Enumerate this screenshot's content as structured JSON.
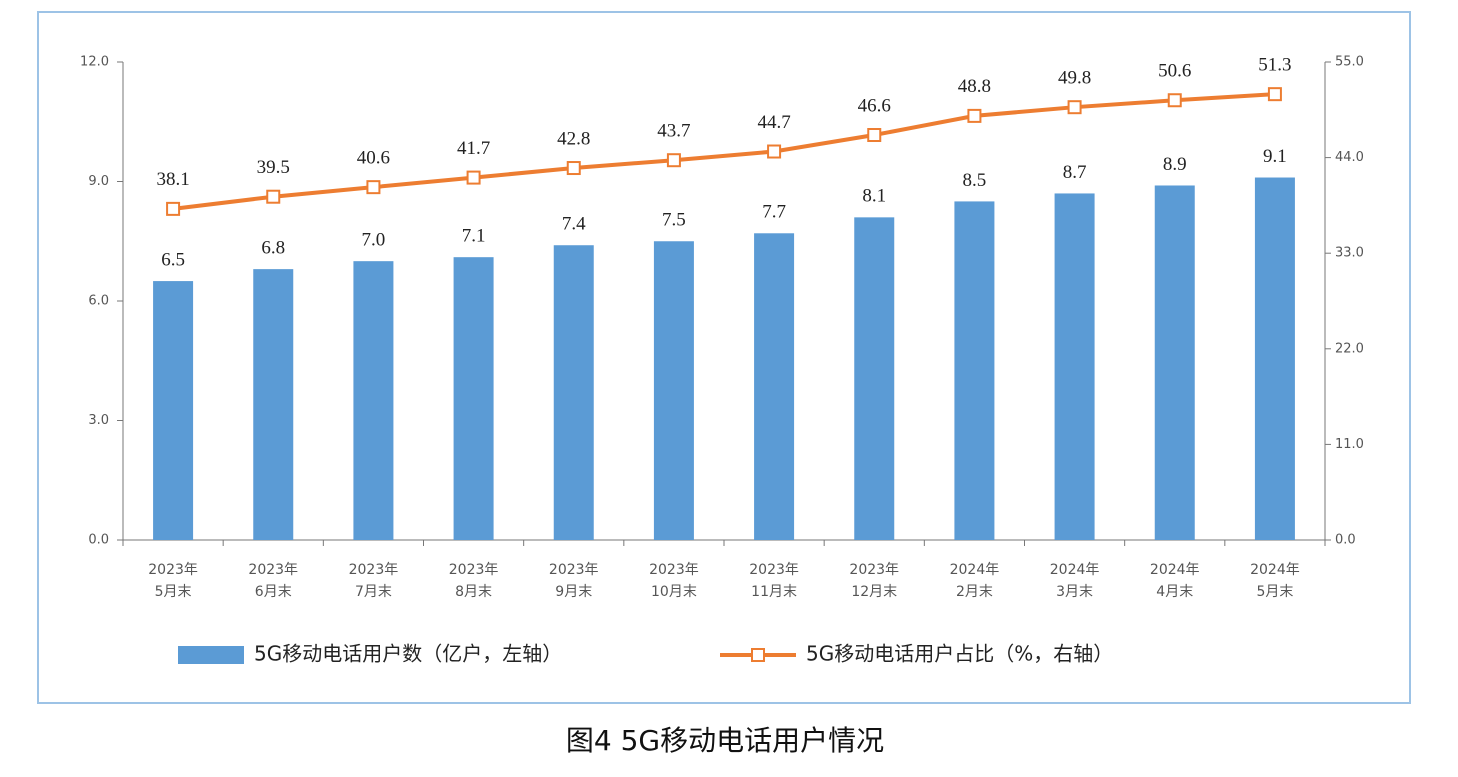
{
  "chart_data": {
    "type": "bar_line",
    "title": "图4 5G移动电话用户情况",
    "categories": [
      [
        "2023年",
        "5月末"
      ],
      [
        "2023年",
        "6月末"
      ],
      [
        "2023年",
        "7月末"
      ],
      [
        "2023年",
        "8月末"
      ],
      [
        "2023年",
        "9月末"
      ],
      [
        "2023年",
        "10月末"
      ],
      [
        "2023年",
        "11月末"
      ],
      [
        "2023年",
        "12月末"
      ],
      [
        "2024年",
        "2月末"
      ],
      [
        "2024年",
        "3月末"
      ],
      [
        "2024年",
        "4月末"
      ],
      [
        "2024年",
        "5月末"
      ]
    ],
    "series": [
      {
        "name": "5G移动电话用户数（亿户，左轴）",
        "type": "bar",
        "color": "#5b9bd5",
        "values": [
          6.5,
          6.8,
          7.0,
          7.1,
          7.4,
          7.5,
          7.7,
          8.1,
          8.5,
          8.7,
          8.9,
          9.1
        ],
        "value_labels": [
          "6.5",
          "6.8",
          "7.0",
          "7.1",
          "7.4",
          "7.5",
          "7.7",
          "8.1",
          "8.5",
          "8.7",
          "8.9",
          "9.1"
        ]
      },
      {
        "name": "5G移动电话用户占比（%，右轴）",
        "type": "line",
        "axis": "y2",
        "color": "#ed7d31",
        "values": [
          38.1,
          39.5,
          40.6,
          41.7,
          42.8,
          43.7,
          44.7,
          46.6,
          48.8,
          49.8,
          50.6,
          51.3
        ]
      }
    ],
    "ylim": [
      0,
      12
    ],
    "yticks": [
      {
        "value": 0,
        "label": "0.0"
      },
      {
        "value": 3,
        "label": "3.0"
      },
      {
        "value": 6,
        "label": "6.0"
      },
      {
        "value": 9,
        "label": "9.0"
      },
      {
        "value": 12,
        "label": "12.0"
      }
    ],
    "y2lim": [
      0,
      55
    ],
    "y2ticks": [
      {
        "value": 0,
        "label": "0.0"
      },
      {
        "value": 11,
        "label": "11.0"
      },
      {
        "value": 22,
        "label": "22.0"
      },
      {
        "value": 33,
        "label": "33.0"
      },
      {
        "value": 44,
        "label": "44.0"
      },
      {
        "value": 55,
        "label": "55.0"
      }
    ],
    "grid": false
  }
}
